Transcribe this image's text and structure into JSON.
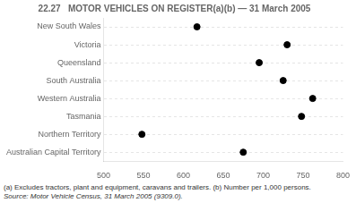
{
  "chart_data": {
    "type": "dot",
    "orientation": "horizontal",
    "title": "22.27   MOTOR VEHICLES ON REGISTER(a)(b) — 31 March 2005",
    "categories": [
      "New South Wales",
      "Victoria",
      "Queensland",
      "South Australia",
      "Western Australia",
      "Tasmania",
      "Northern Territory",
      "Australian Capital Territory"
    ],
    "values": [
      617,
      730,
      695,
      725,
      762,
      748,
      548,
      675
    ],
    "color": "#000000",
    "marker": "circle",
    "line_style": "dashed",
    "xlim": [
      500,
      800
    ],
    "xticks": [
      500,
      550,
      600,
      650,
      700,
      750,
      800
    ],
    "grid": "y",
    "annotations": [
      "(a)  Excludes tractors, plant and equipment, caravans and trailers.  (b)  Number per 1,000 persons.",
      "Source:  Motor Vehicle Census, 31 March 2005 (9309.0)."
    ]
  }
}
